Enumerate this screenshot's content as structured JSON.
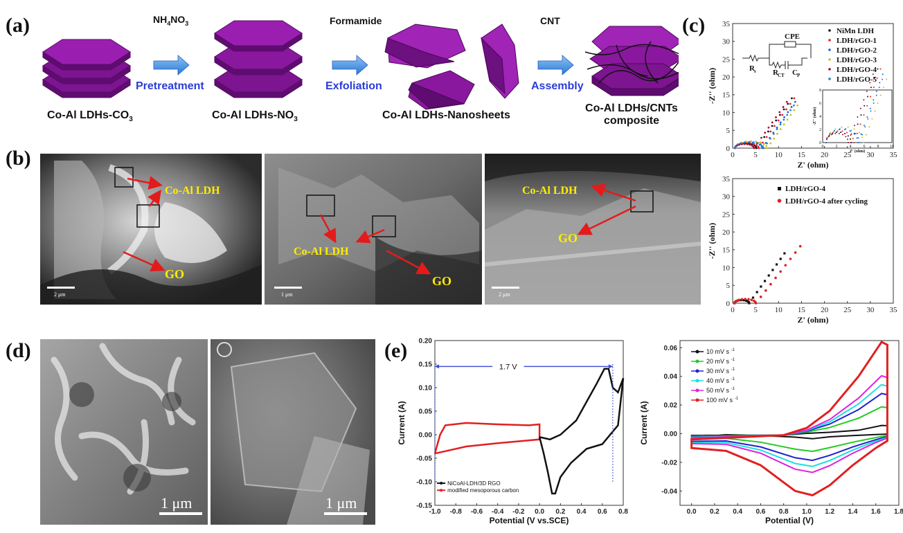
{
  "panel_labels": {
    "a": "(a)",
    "b": "(b)",
    "c": "(c)",
    "d": "(d)",
    "e": "(e)"
  },
  "scheme": {
    "stages": [
      "Co-Al LDHs-CO",
      "Co-Al LDHs-NO",
      "Co-Al LDHs-Nanosheets",
      "Co-Al LDHs/CNTs"
    ],
    "stage_subscripts": [
      "3",
      "3"
    ],
    "stage4_line2": "composite",
    "reagents": [
      "NH",
      "NO",
      "Formamide",
      "CNT"
    ],
    "reagent_subscripts": [
      "4",
      "3"
    ],
    "steps": [
      "Pretreatment",
      "Exfoliation",
      "Assembly"
    ],
    "colors": {
      "sheet": "#9a1fb0",
      "sheet_dark": "#6c0f7f",
      "arrow": "#3a8ee6",
      "step_text": "#2a3cd8"
    }
  },
  "sem_b": {
    "labels": {
      "ldh": "Co-Al LDH",
      "go": "GO"
    },
    "scales": [
      "2 μm",
      "1 μm",
      "2 μm"
    ],
    "colors": {
      "label": "#ffee00",
      "arrow": "#e31b1b"
    }
  },
  "sem_d": {
    "scales": [
      "1 μm",
      "1 μm"
    ]
  },
  "chart_c_top": {
    "type": "scatter",
    "xlabel": "Z' (ohm)",
    "ylabel": "-Z'' (ohm)",
    "xlim": [
      0,
      35
    ],
    "ylim": [
      0,
      35
    ],
    "xticks": [
      "0",
      "5",
      "10",
      "15",
      "20",
      "25",
      "30",
      "35"
    ],
    "yticks": [
      "0",
      "5",
      "10",
      "15",
      "20",
      "25",
      "30",
      "35"
    ],
    "circuit": {
      "cpe": "CPE",
      "rs": "R",
      "rs_sub": "s",
      "rct": "R",
      "rct_sub": "CT",
      "cp": "C",
      "cp_sub": "P"
    },
    "inset": {
      "xlabel": "Z' (ohm)",
      "ylabel": "-Z'' (ohm)",
      "xticks": [
        "0",
        "2",
        "4",
        "6",
        "8",
        "10"
      ],
      "yticks": [
        "0",
        "2",
        "4",
        "6",
        "8"
      ]
    },
    "series": [
      {
        "name": "NiMn LDH",
        "color": "#111111"
      },
      {
        "name": "LDH/rGO-1",
        "color": "#e02020"
      },
      {
        "name": "LDH/rGO-2",
        "color": "#1f5fe0"
      },
      {
        "name": "LDH/rGO-3",
        "color": "#c8c020"
      },
      {
        "name": "LDH/rGO-4",
        "color": "#b00030"
      },
      {
        "name": "LDH/rGO-5",
        "color": "#2080c8"
      }
    ]
  },
  "chart_c_bottom": {
    "type": "scatter",
    "xlabel": "Z' (ohm)",
    "ylabel": "-Z'' (ohm)",
    "xlim": [
      0,
      35
    ],
    "ylim": [
      0,
      35
    ],
    "xticks": [
      "0",
      "5",
      "10",
      "15",
      "20",
      "25",
      "30",
      "35"
    ],
    "yticks": [
      "0",
      "5",
      "10",
      "15",
      "20",
      "25",
      "30",
      "35"
    ],
    "series": [
      {
        "name": "LDH/rGO-4",
        "color": "#111111"
      },
      {
        "name": "LDH/rGO-4 after cycling",
        "color": "#e02020"
      }
    ]
  },
  "chart_e_left": {
    "type": "line",
    "xlabel": "Potential (V vs.SCE)",
    "ylabel": "Current (A)",
    "xlim": [
      -1.0,
      0.8
    ],
    "ylim": [
      -0.15,
      0.2
    ],
    "xticks": [
      "-1.0",
      "-0.8",
      "-0.6",
      "-0.4",
      "-0.2",
      "0.0",
      "0.2",
      "0.4",
      "0.6",
      "0.8"
    ],
    "yticks": [
      "-0.15",
      "-0.10",
      "-0.05",
      "0.00",
      "0.05",
      "0.10",
      "0.15",
      "0.20"
    ],
    "window_label": "1.7 V",
    "series": [
      {
        "name": "NiCoAl-LDH/3D RGO",
        "color": "#111111"
      },
      {
        "name": "modified mesoporous carbon",
        "color": "#e02020"
      }
    ]
  },
  "chart_e_right": {
    "type": "line",
    "xlabel": "Potential (V)",
    "ylabel": "Current (A)",
    "xlim": [
      -0.1,
      1.8
    ],
    "ylim": [
      -0.05,
      0.065
    ],
    "xticks": [
      "0.0",
      "0.2",
      "0.4",
      "0.6",
      "0.8",
      "1.0",
      "1.2",
      "1.4",
      "1.6",
      "1.8"
    ],
    "yticks": [
      "-0.04",
      "-0.02",
      "0.00",
      "0.02",
      "0.04",
      "0.06"
    ],
    "series": [
      {
        "name": "10 mV s",
        "color": "#111111",
        "scale": 0.06
      },
      {
        "name": "20 mV s",
        "color": "#22cc22",
        "scale": 0.27
      },
      {
        "name": "30 mV s",
        "color": "#2020d0",
        "scale": 0.42
      },
      {
        "name": "40 mV s",
        "color": "#19e0e0",
        "scale": 0.52
      },
      {
        "name": "50 mV s",
        "color": "#e020e0",
        "scale": 0.62
      },
      {
        "name": "100 mV s",
        "color": "#e02020",
        "scale": 1.0
      }
    ],
    "unit_sup": "-1"
  }
}
